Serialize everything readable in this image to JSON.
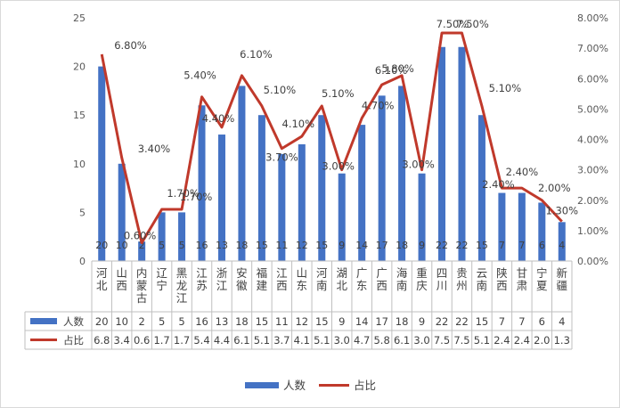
{
  "chart_data": {
    "type": "bar+line",
    "categories": [
      "河北",
      "山西",
      "内蒙古",
      "辽宁",
      "黑龙江",
      "江苏",
      "浙江",
      "安徽",
      "福建",
      "江西",
      "山东",
      "河南",
      "湖北",
      "广东",
      "广西",
      "海南",
      "重庆",
      "四川",
      "贵州",
      "云南",
      "陕西",
      "甘肃",
      "宁夏",
      "新疆"
    ],
    "series": [
      {
        "name": "人数",
        "type": "bar",
        "axis": "left",
        "values": [
          20,
          10,
          2,
          5,
          5,
          16,
          13,
          18,
          15,
          11,
          12,
          15,
          9,
          14,
          17,
          18,
          9,
          22,
          22,
          15,
          7,
          7,
          6,
          4
        ],
        "color": "#4472c4"
      },
      {
        "name": "占比",
        "type": "line",
        "axis": "right",
        "values": [
          6.8,
          3.4,
          0.6,
          1.7,
          1.7,
          5.4,
          4.4,
          6.1,
          5.1,
          3.7,
          4.1,
          5.1,
          3.0,
          4.7,
          5.8,
          6.1,
          3.0,
          7.5,
          7.5,
          5.1,
          2.4,
          2.4,
          2.0,
          1.3
        ],
        "color": "#c0392b"
      }
    ],
    "left_axis": {
      "min": 0,
      "max": 25,
      "step": 5,
      "ticks": [
        "0",
        "5",
        "10",
        "15",
        "20",
        "25"
      ]
    },
    "right_axis": {
      "min": 0,
      "max": 8,
      "step": 1,
      "ticks": [
        "0.00%",
        "1.00%",
        "2.00%",
        "3.00%",
        "4.00%",
        "5.00%",
        "6.00%",
        "7.00%",
        "8.00%"
      ]
    },
    "point_labels": [
      "6.80%",
      "3.40%",
      "0.60%",
      "1.70%",
      "1.70%",
      "5.40%",
      "4.40%",
      "6.10%",
      "5.10%",
      "3.70%",
      "4.10%",
      "5.10%",
      "3.00%",
      "4.70%",
      "5.80%",
      "6.10%",
      "3.00%",
      "7.50%",
      "7.50%",
      "5.10%",
      "2.40%",
      "2.40%",
      "2.00%",
      "1.30%"
    ],
    "table_rows": [
      {
        "legend": "人数",
        "values": [
          "20",
          "10",
          "2",
          "5",
          "5",
          "16",
          "13",
          "18",
          "15",
          "11",
          "12",
          "15",
          "9",
          "14",
          "17",
          "18",
          "9",
          "22",
          "22",
          "15",
          "7",
          "7",
          "6",
          "4"
        ]
      },
      {
        "legend": "占比",
        "values": [
          "6.8",
          "3.4",
          "0.6",
          "1.7",
          "1.7",
          "5.4",
          "4.4",
          "6.1",
          "5.1",
          "3.7",
          "4.1",
          "5.1",
          "3.0",
          "4.7",
          "5.8",
          "6.1",
          "3.0",
          "7.5",
          "7.5",
          "5.1",
          "2.4",
          "2.4",
          "2.0",
          "1.3"
        ]
      }
    ],
    "legend": [
      "人数",
      "占比"
    ],
    "legend_position": "bottom",
    "grid": false
  }
}
